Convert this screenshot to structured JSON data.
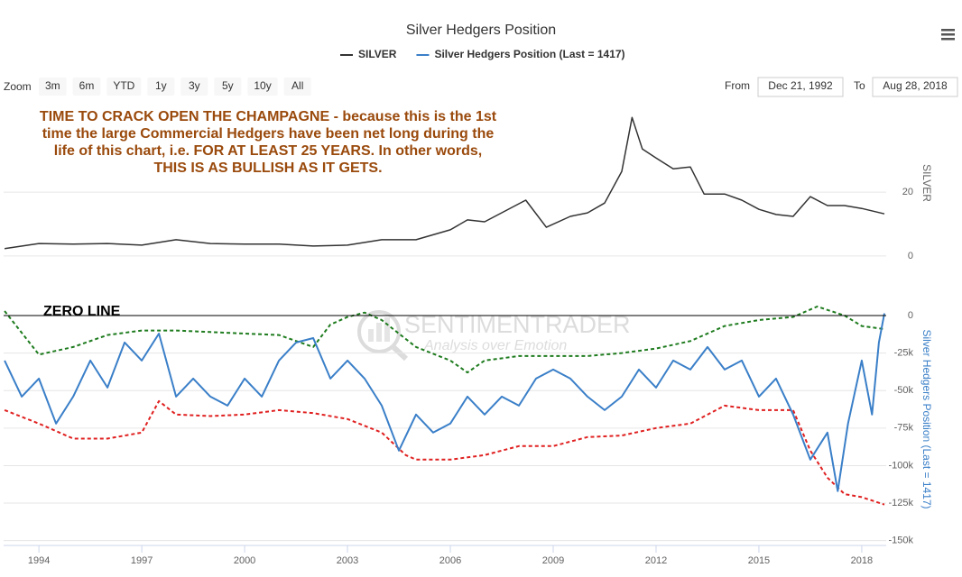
{
  "ui": {
    "zoom_label": "Zoom",
    "zoom_buttons": [
      "3m",
      "6m",
      "YTD",
      "1y",
      "3y",
      "5y",
      "10y",
      "All"
    ],
    "from_label": "From",
    "from": "Dec 21, 1992",
    "to_label": "To",
    "to": "Aug 28, 2018"
  },
  "watermark": {
    "name": "SENTIMENTRADER",
    "tagline": "Analysis over Emotion"
  },
  "chart_data": [
    {
      "type": "line",
      "title": "Silver Hedgers Position",
      "ylabel": "SILVER",
      "annotations": [
        "TIME TO CRACK OPEN THE CHAMPAGNE - because this is the 1st",
        "time the large Commercial Hedgers have been net long during the",
        "life of this chart, i.e. FOR AT LEAST 25 YEARS. In other words,",
        "THIS IS AS BULLISH AS IT GETS."
      ],
      "annotation_color": "#9a4a0c",
      "xlim": [
        1992.97,
        2018.66
      ],
      "ylim": [
        -2,
        48
      ],
      "yticks": [
        0,
        20
      ],
      "grid": true,
      "series": [
        {
          "name": "SILVER",
          "color": "#333333",
          "x": [
            1993,
            1994,
            1995,
            1996,
            1997,
            1998,
            1999,
            2000,
            2001,
            2002,
            2003,
            2004,
            2005,
            2006,
            2006.5,
            2007,
            2008.2,
            2008.8,
            2009.5,
            2010,
            2010.5,
            2011,
            2011.3,
            2011.6,
            2012,
            2012.5,
            2013,
            2013.4,
            2014,
            2014.5,
            2015,
            2015.5,
            2016,
            2016.5,
            2017,
            2017.5,
            2018,
            2018.66
          ],
          "values": [
            2.3,
            3.9,
            3.7,
            3.9,
            3.4,
            5.1,
            3.9,
            3.7,
            3.7,
            3.1,
            3.4,
            5.1,
            5.1,
            8.2,
            11.3,
            10.7,
            17.5,
            9,
            12.4,
            13.5,
            16.6,
            26.5,
            43.4,
            33.5,
            30.7,
            27.3,
            27.9,
            19.4,
            19.4,
            17.5,
            14.6,
            13,
            12.4,
            18.6,
            15.8,
            15.8,
            14.9,
            13.2
          ]
        }
      ]
    },
    {
      "type": "line",
      "ylabel": "Silver Hedgers Position (Last = 1417)",
      "annotations": [
        "ZERO LINE"
      ],
      "plot_line": 0,
      "xlim": [
        1992.97,
        2018.66
      ],
      "xticks": [
        1994,
        1997,
        2000,
        2003,
        2006,
        2009,
        2012,
        2015,
        2018
      ],
      "ylim": [
        -152000,
        9000
      ],
      "grid": true,
      "yticks": [
        0,
        {
          "value": -25000,
          "label": "-25k"
        },
        {
          "value": -50000,
          "label": "-50k"
        },
        {
          "value": -75000,
          "label": "-75k"
        },
        {
          "value": -100000,
          "label": "-100k"
        },
        {
          "value": -125000,
          "label": "-125k"
        },
        {
          "value": -150000,
          "label": "-150k"
        }
      ],
      "series": [
        {
          "color": "#1e7b1e",
          "dashed": true,
          "x": [
            1993,
            1994,
            1995,
            1996,
            1997,
            1998,
            1999,
            2000,
            2001,
            2002,
            2002.5,
            2003,
            2003.5,
            2004,
            2004.5,
            2005,
            2006,
            2006.5,
            2007,
            2008,
            2009,
            2010,
            2011,
            2012,
            2013,
            2014,
            2015,
            2016,
            2016.7,
            2017.5,
            2018,
            2018.66
          ],
          "values": [
            3000,
            -26000,
            -21000,
            -13000,
            -10000,
            -10000,
            -11000,
            -12000,
            -13000,
            -21000,
            -6000,
            -1000,
            2000,
            -3000,
            -12000,
            -21000,
            -30000,
            -38000,
            -30000,
            -27000,
            -27000,
            -27000,
            -25000,
            -22000,
            -17000,
            -7000,
            -3000,
            -1000,
            6000,
            0,
            -7000,
            -9000
          ]
        },
        {
          "color": "#e02020",
          "dashed": true,
          "x": [
            1993,
            1994,
            1995,
            1996,
            1997,
            1997.5,
            1998,
            1999,
            2000,
            2001,
            2002,
            2003,
            2004,
            2004.7,
            2005,
            2006,
            2007,
            2008,
            2009,
            2010,
            2011,
            2012,
            2013,
            2014,
            2015,
            2016,
            2016.5,
            2017,
            2017.5,
            2018,
            2018.66
          ],
          "values": [
            -63000,
            -72000,
            -82000,
            -82000,
            -78000,
            -57000,
            -66000,
            -67000,
            -66000,
            -63000,
            -65000,
            -69000,
            -78000,
            -93000,
            -96000,
            -96000,
            -93000,
            -87000,
            -87000,
            -81000,
            -80000,
            -75000,
            -72000,
            -60000,
            -63000,
            -63000,
            -90000,
            -108000,
            -119000,
            -121000,
            -126000
          ]
        },
        {
          "name": "Silver Hedgers Position (Last = 1417)",
          "color": "#3a7fc8",
          "x": [
            1993,
            1993.5,
            1994,
            1994.5,
            1995,
            1995.5,
            1996,
            1996.5,
            1997,
            1997.5,
            1998,
            1998.5,
            1999,
            1999.5,
            2000,
            2000.5,
            2001,
            2001.5,
            2002,
            2002.5,
            2003,
            2003.5,
            2004,
            2004.5,
            2005,
            2005.5,
            2006,
            2006.5,
            2007,
            2007.5,
            2008,
            2008.5,
            2009,
            2009.5,
            2010,
            2010.5,
            2011,
            2011.5,
            2012,
            2012.5,
            2013,
            2013.5,
            2014,
            2014.5,
            2015,
            2015.5,
            2016,
            2016.5,
            2017,
            2017.3,
            2017.6,
            2018,
            2018.3,
            2018.5,
            2018.66
          ],
          "values": [
            -30000,
            -54000,
            -42000,
            -72000,
            -54000,
            -30000,
            -48000,
            -18000,
            -30000,
            -12000,
            -54000,
            -42000,
            -54000,
            -60000,
            -42000,
            -54000,
            -30000,
            -18000,
            -15000,
            -42000,
            -30000,
            -42000,
            -60000,
            -90000,
            -66000,
            -78000,
            -72000,
            -54000,
            -66000,
            -54000,
            -60000,
            -42000,
            -36000,
            -42000,
            -54000,
            -63000,
            -54000,
            -36000,
            -48000,
            -30000,
            -36000,
            -21000,
            -36000,
            -30000,
            -54000,
            -42000,
            -66000,
            -96000,
            -78000,
            -117000,
            -72000,
            -30000,
            -66000,
            -18000,
            1417
          ]
        }
      ]
    }
  ]
}
